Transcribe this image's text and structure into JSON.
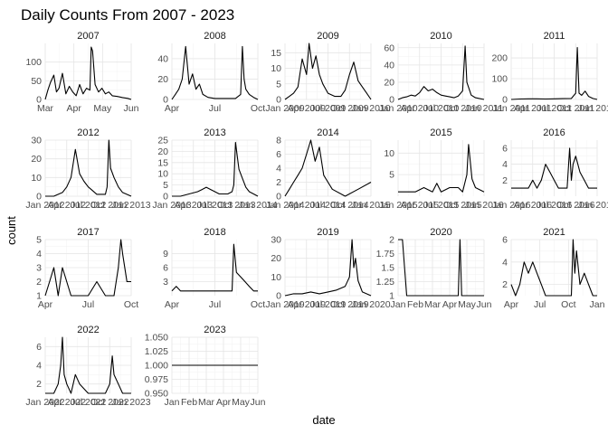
{
  "chart_data": {
    "type": "line",
    "title": "Daily Counts From 2007 - 2023",
    "xlabel": "date",
    "ylabel": "count",
    "grid": true,
    "colors": {
      "line": "#000000",
      "grid_major": "#e5e5e5",
      "grid_minor": "#f2f2f2"
    },
    "panels": [
      {
        "name": "2007",
        "ylim": [
          0,
          150
        ],
        "yticks": [
          0,
          50,
          100
        ],
        "xticks": [
          "Mar",
          "Apr",
          "May",
          "Jun"
        ],
        "x": [
          0.0,
          0.03,
          0.06,
          0.1,
          0.13,
          0.16,
          0.2,
          0.24,
          0.28,
          0.32,
          0.36,
          0.4,
          0.44,
          0.48,
          0.52,
          0.535,
          0.55,
          0.58,
          0.62,
          0.66,
          0.7,
          0.74,
          0.78,
          0.84,
          0.9,
          0.96,
          1.0
        ],
        "y": [
          0,
          25,
          45,
          65,
          20,
          30,
          70,
          15,
          35,
          20,
          10,
          40,
          15,
          30,
          25,
          140,
          130,
          40,
          20,
          30,
          15,
          20,
          10,
          8,
          5,
          3,
          0
        ]
      },
      {
        "name": "2008",
        "ylim": [
          0,
          55
        ],
        "yticks": [
          0,
          20,
          40
        ],
        "xticks": [
          "Apr",
          "Jul",
          "Oct"
        ],
        "x": [
          0.0,
          0.04,
          0.08,
          0.12,
          0.16,
          0.2,
          0.24,
          0.28,
          0.32,
          0.36,
          0.42,
          0.5,
          0.58,
          0.66,
          0.74,
          0.8,
          0.82,
          0.84,
          0.86,
          0.9,
          0.95,
          1.0
        ],
        "y": [
          0,
          5,
          10,
          20,
          52,
          15,
          25,
          10,
          15,
          5,
          2,
          1,
          1,
          1,
          1,
          5,
          52,
          20,
          10,
          5,
          2,
          0
        ]
      },
      {
        "name": "2009",
        "ylim": [
          0,
          18
        ],
        "yticks": [
          0,
          5,
          10,
          15
        ],
        "xticks": [
          "Jan 2009",
          "Apr 2009",
          "Jul 2009",
          "Oct 2009",
          "Jan 2010"
        ],
        "x": [
          0.0,
          0.05,
          0.1,
          0.15,
          0.2,
          0.25,
          0.28,
          0.32,
          0.36,
          0.4,
          0.44,
          0.5,
          0.58,
          0.65,
          0.7,
          0.75,
          0.8,
          0.85,
          0.9,
          0.95,
          1.0
        ],
        "y": [
          0,
          1,
          2,
          4,
          13,
          8,
          18,
          10,
          14,
          8,
          5,
          2,
          1,
          1,
          3,
          8,
          12,
          6,
          4,
          2,
          0
        ]
      },
      {
        "name": "2010",
        "ylim": [
          0,
          65
        ],
        "yticks": [
          0,
          20,
          40,
          60
        ],
        "xticks": [
          "Jan 2010",
          "Apr 2010",
          "Jul 2010",
          "Oct 2010",
          "Jan 2011"
        ],
        "x": [
          0.0,
          0.05,
          0.1,
          0.15,
          0.2,
          0.25,
          0.3,
          0.35,
          0.4,
          0.45,
          0.5,
          0.55,
          0.6,
          0.65,
          0.7,
          0.75,
          0.78,
          0.8,
          0.85,
          0.9,
          1.0
        ],
        "y": [
          0,
          2,
          3,
          5,
          4,
          8,
          15,
          10,
          12,
          8,
          5,
          4,
          3,
          2,
          4,
          10,
          62,
          20,
          5,
          2,
          0
        ]
      },
      {
        "name": "2011",
        "ylim": [
          0,
          270
        ],
        "yticks": [
          0,
          100,
          200
        ],
        "xticks": [
          "Jan 2011",
          "Apr 2011",
          "Jul 2011",
          "Oct 2011",
          "Jan 2012"
        ],
        "x": [
          0.0,
          0.1,
          0.2,
          0.3,
          0.4,
          0.5,
          0.6,
          0.7,
          0.75,
          0.77,
          0.79,
          0.82,
          0.86,
          0.9,
          0.95,
          1.0
        ],
        "y": [
          0,
          2,
          3,
          3,
          2,
          3,
          4,
          5,
          30,
          250,
          30,
          20,
          40,
          15,
          5,
          0
        ]
      },
      {
        "name": "2012",
        "ylim": [
          0,
          30
        ],
        "yticks": [
          0,
          10,
          20,
          30
        ],
        "xticks": [
          "Jan 2012",
          "Apr 2012",
          "Jul 2012",
          "Oct 2012",
          "Jan 2013"
        ],
        "x": [
          0.0,
          0.1,
          0.2,
          0.25,
          0.3,
          0.35,
          0.4,
          0.45,
          0.5,
          0.55,
          0.6,
          0.65,
          0.7,
          0.72,
          0.74,
          0.76,
          0.8,
          0.85,
          0.9,
          1.0
        ],
        "y": [
          0,
          0,
          2,
          5,
          10,
          25,
          12,
          8,
          5,
          3,
          1,
          1,
          1,
          5,
          30,
          15,
          10,
          5,
          2,
          0
        ]
      },
      {
        "name": "2013",
        "ylim": [
          0,
          25
        ],
        "yticks": [
          0,
          5,
          10,
          15,
          20,
          25
        ],
        "xticks": [
          "Jan 2013",
          "Apr 2013",
          "Jul 2013",
          "Oct 2013",
          "Jan 2014"
        ],
        "x": [
          0.0,
          0.1,
          0.2,
          0.3,
          0.35,
          0.4,
          0.45,
          0.5,
          0.55,
          0.6,
          0.65,
          0.7,
          0.72,
          0.74,
          0.76,
          0.78,
          0.82,
          0.86,
          0.9,
          1.0
        ],
        "y": [
          0,
          0,
          1,
          2,
          3,
          4,
          3,
          2,
          1,
          1,
          1,
          2,
          5,
          24,
          18,
          12,
          8,
          4,
          2,
          0
        ]
      },
      {
        "name": "2014",
        "ylim": [
          0,
          8
        ],
        "yticks": [
          0,
          2,
          4,
          6,
          8
        ],
        "xticks": [
          "Jan 2014",
          "Apr 2014",
          "Jul 2014",
          "Oct 2014",
          "Jan 2015"
        ],
        "x": [
          0.0,
          0.05,
          0.1,
          0.15,
          0.2,
          0.25,
          0.3,
          0.35,
          0.4,
          0.45,
          0.5,
          0.55,
          0.7,
          0.85,
          1.0
        ],
        "y": [
          0,
          1,
          2,
          3,
          4,
          6,
          8,
          5,
          7,
          3,
          2,
          1,
          0,
          1,
          2
        ]
      },
      {
        "name": "2015",
        "ylim": [
          0,
          13
        ],
        "yticks": [
          5,
          10
        ],
        "xticks": [
          "Jan 2015",
          "Apr 2015",
          "Jul 2015",
          "Oct 2015",
          "Jan 2016"
        ],
        "x": [
          0.0,
          0.1,
          0.2,
          0.3,
          0.4,
          0.45,
          0.5,
          0.6,
          0.7,
          0.75,
          0.8,
          0.82,
          0.84,
          0.86,
          0.9,
          1.0
        ],
        "y": [
          1,
          1,
          1,
          2,
          1,
          3,
          1,
          2,
          2,
          1,
          5,
          12,
          8,
          4,
          2,
          1
        ]
      },
      {
        "name": "2016",
        "ylim": [
          0,
          7
        ],
        "yticks": [
          2,
          4,
          6
        ],
        "xticks": [
          "Jan 2016",
          "Apr 2016",
          "Jul 2016",
          "Oct 2016",
          "Jan 2017"
        ],
        "x": [
          0.0,
          0.1,
          0.2,
          0.25,
          0.3,
          0.35,
          0.4,
          0.45,
          0.5,
          0.55,
          0.6,
          0.65,
          0.68,
          0.7,
          0.72,
          0.75,
          0.8,
          0.85,
          0.9,
          1.0
        ],
        "y": [
          1,
          1,
          1,
          2,
          1,
          2,
          4,
          3,
          2,
          1,
          1,
          1,
          6,
          2,
          4,
          5,
          3,
          2,
          1,
          1
        ]
      },
      {
        "name": "2017",
        "ylim": [
          1,
          5
        ],
        "yticks": [
          1,
          2,
          3,
          4,
          5
        ],
        "xticks": [
          "Apr",
          "Jul",
          "Oct"
        ],
        "x": [
          0.0,
          0.05,
          0.1,
          0.15,
          0.2,
          0.3,
          0.4,
          0.5,
          0.6,
          0.7,
          0.8,
          0.85,
          0.88,
          0.9,
          0.95,
          1.0
        ],
        "y": [
          1,
          2,
          3,
          1,
          3,
          1,
          1,
          1,
          2,
          1,
          1,
          3,
          5,
          4,
          2,
          2
        ]
      },
      {
        "name": "2018",
        "ylim": [
          0,
          12
        ],
        "yticks": [
          3,
          6,
          9
        ],
        "xticks": [
          "Apr",
          "Jul",
          "Oct"
        ],
        "x": [
          0.0,
          0.05,
          0.1,
          0.2,
          0.3,
          0.4,
          0.5,
          0.6,
          0.7,
          0.72,
          0.75,
          0.8,
          0.85,
          0.9,
          0.95,
          1.0
        ],
        "y": [
          1,
          2,
          1,
          1,
          1,
          1,
          1,
          1,
          1,
          11,
          5,
          4,
          3,
          2,
          1,
          1
        ]
      },
      {
        "name": "2019",
        "ylim": [
          0,
          30
        ],
        "yticks": [
          0,
          10,
          20,
          30
        ],
        "xticks": [
          "Jan 2019",
          "Apr 2019",
          "Jul 2019",
          "Oct 2019",
          "Jan 2020"
        ],
        "x": [
          0.0,
          0.1,
          0.2,
          0.3,
          0.4,
          0.5,
          0.6,
          0.7,
          0.75,
          0.78,
          0.8,
          0.82,
          0.85,
          0.9,
          1.0
        ],
        "y": [
          0,
          1,
          1,
          2,
          1,
          2,
          3,
          5,
          10,
          30,
          15,
          20,
          8,
          2,
          0
        ]
      },
      {
        "name": "2020",
        "ylim": [
          1.0,
          2.0
        ],
        "yticks": [
          1.0,
          1.25,
          1.5,
          1.75,
          2.0
        ],
        "xticks": [
          "Jan",
          "Feb",
          "Mar",
          "Apr",
          "May",
          "Jun"
        ],
        "x": [
          0.0,
          0.05,
          0.1,
          0.3,
          0.5,
          0.6,
          0.7,
          0.72,
          0.74,
          0.8,
          1.0
        ],
        "y": [
          2.0,
          2.0,
          1.0,
          1.0,
          1.0,
          1.0,
          1.0,
          2.0,
          1.0,
          1.0,
          1.0
        ]
      },
      {
        "name": "2021",
        "ylim": [
          1,
          6
        ],
        "yticks": [
          2,
          4,
          6
        ],
        "xticks": [
          "Apr",
          "Jul",
          "Oct",
          "Jan"
        ],
        "x": [
          0.0,
          0.05,
          0.1,
          0.15,
          0.2,
          0.25,
          0.3,
          0.35,
          0.4,
          0.5,
          0.6,
          0.7,
          0.72,
          0.74,
          0.76,
          0.8,
          0.85,
          0.9,
          0.95,
          1.0
        ],
        "y": [
          2,
          1,
          2,
          4,
          3,
          4,
          3,
          2,
          1,
          1,
          1,
          1,
          6,
          3,
          5,
          2,
          3,
          2,
          1,
          1
        ]
      },
      {
        "name": "2022",
        "ylim": [
          1,
          7
        ],
        "yticks": [
          2,
          4,
          6
        ],
        "xticks": [
          "Jan 2022",
          "Apr 2022",
          "Jul 2022",
          "Oct 2022",
          "Jan 2023"
        ],
        "x": [
          0.0,
          0.1,
          0.15,
          0.18,
          0.2,
          0.22,
          0.25,
          0.3,
          0.35,
          0.4,
          0.5,
          0.6,
          0.7,
          0.75,
          0.78,
          0.8,
          0.85,
          0.9,
          1.0
        ],
        "y": [
          1,
          1,
          2,
          4,
          7,
          3,
          2,
          1,
          3,
          2,
          1,
          1,
          1,
          2,
          5,
          3,
          2,
          1,
          1
        ]
      },
      {
        "name": "2023",
        "ylim": [
          0.95,
          1.05
        ],
        "yticks": [
          0.95,
          0.975,
          1.0,
          1.025,
          1.05
        ],
        "ytick_labels": [
          "0.950",
          "0.975",
          "1.000",
          "1.025",
          "1.050"
        ],
        "xticks": [
          "Jan",
          "Feb",
          "Mar",
          "Apr",
          "May",
          "Jun"
        ],
        "x": [
          0.0,
          1.0
        ],
        "y": [
          1.0,
          1.0
        ]
      }
    ]
  }
}
